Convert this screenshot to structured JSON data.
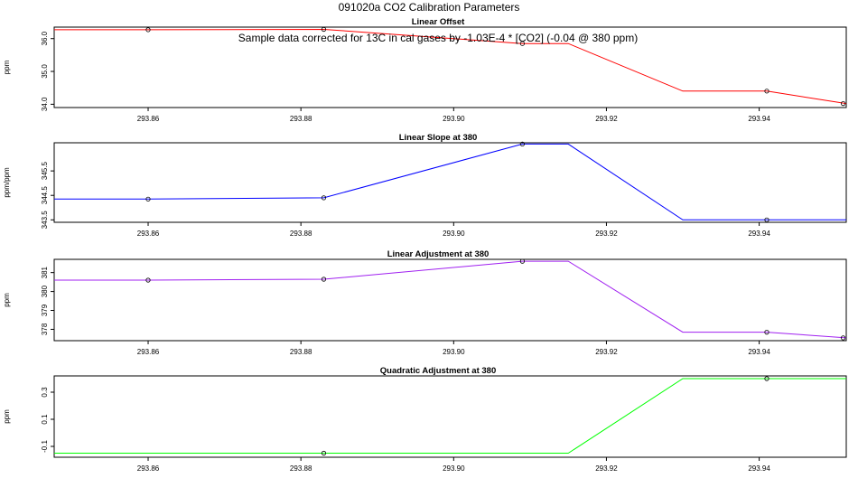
{
  "figure": {
    "title": "091020a   CO2 Calibration Parameters",
    "note": "Sample data corrected for 13C in cal gases by -1.03E-4 * [CO2] (-0.04 @ 380 ppm)"
  },
  "chart_data": [
    {
      "type": "line",
      "title": "Linear Offset",
      "ylabel": "ppm",
      "color": "#ff0000",
      "xlim": [
        293.8477,
        293.9514
      ],
      "ylim": [
        33.9,
        36.35
      ],
      "x_ticks": [
        "293.86",
        "293.88",
        "293.90",
        "293.92",
        "293.94"
      ],
      "y_ticks": [
        "34.0",
        "35.0",
        "36.0"
      ],
      "line": {
        "x": [
          293.8477,
          293.86,
          293.883,
          293.909,
          293.915,
          293.93,
          293.941,
          293.9514
        ],
        "y": [
          36.27,
          36.27,
          36.28,
          35.85,
          35.85,
          34.4,
          34.4,
          34.02
        ]
      },
      "points": {
        "x": [
          293.86,
          293.883,
          293.909,
          293.941,
          293.951
        ],
        "y": [
          36.27,
          36.28,
          35.85,
          34.4,
          34.02
        ]
      }
    },
    {
      "type": "line",
      "title": "Linear Slope at 380",
      "ylabel": "ppm/ppm",
      "color": "#0000ff",
      "xlim": [
        293.8477,
        293.9514
      ],
      "ylim": [
        343.4,
        346.65
      ],
      "x_ticks": [
        "293.86",
        "293.88",
        "293.90",
        "293.92",
        "293.94"
      ],
      "y_ticks": [
        "343.5",
        "344.5",
        "345.5"
      ],
      "line": {
        "x": [
          293.8477,
          293.86,
          293.883,
          293.909,
          293.915,
          293.93,
          293.941,
          293.9514
        ],
        "y": [
          344.35,
          344.35,
          344.4,
          346.6,
          346.6,
          343.5,
          343.5,
          343.5
        ]
      },
      "points": {
        "x": [
          293.86,
          293.883,
          293.909,
          293.941
        ],
        "y": [
          344.35,
          344.4,
          346.6,
          343.5
        ]
      }
    },
    {
      "type": "line",
      "title": "Linear Adjustment at 380",
      "ylabel": "ppm",
      "color": "#a020f0",
      "xlim": [
        293.8477,
        293.9514
      ],
      "ylim": [
        377.4,
        381.7
      ],
      "x_ticks": [
        "293.86",
        "293.88",
        "293.90",
        "293.92",
        "293.94"
      ],
      "y_ticks": [
        "378",
        "379",
        "380",
        "381"
      ],
      "line": {
        "x": [
          293.8477,
          293.86,
          293.883,
          293.909,
          293.915,
          293.93,
          293.941,
          293.9514
        ],
        "y": [
          380.6,
          380.6,
          380.65,
          381.6,
          381.6,
          377.85,
          377.85,
          377.55
        ]
      },
      "points": {
        "x": [
          293.86,
          293.883,
          293.909,
          293.941,
          293.951
        ],
        "y": [
          380.6,
          380.65,
          381.6,
          377.85,
          377.55
        ]
      }
    },
    {
      "type": "line",
      "title": "Quadratic Adjustment at 380",
      "ylabel": "ppm",
      "color": "#00ff00",
      "xlim": [
        293.8477,
        293.9514
      ],
      "ylim": [
        -0.18,
        0.42
      ],
      "x_ticks": [
        "293.86",
        "293.88",
        "293.90",
        "293.92",
        "293.94"
      ],
      "y_ticks": [
        "-0.1",
        "0.1",
        "0.3"
      ],
      "line": {
        "x": [
          293.8477,
          293.883,
          293.915,
          293.93,
          293.941,
          293.9514
        ],
        "y": [
          -0.15,
          -0.15,
          -0.15,
          0.4,
          0.4,
          0.4
        ]
      },
      "points": {
        "x": [
          293.883,
          293.941
        ],
        "y": [
          -0.15,
          0.4
        ]
      }
    }
  ]
}
